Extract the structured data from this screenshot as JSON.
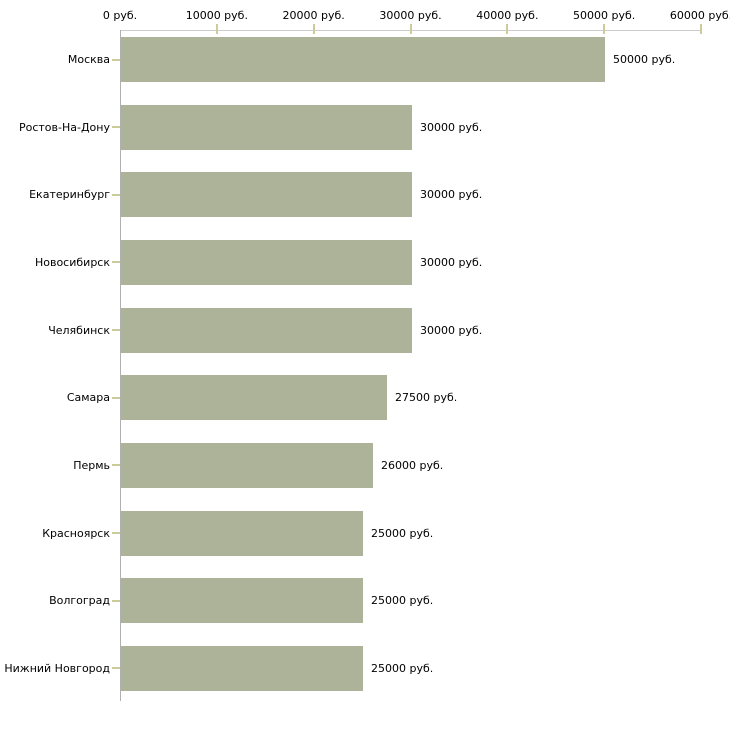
{
  "chart_data": {
    "type": "bar",
    "orientation": "horizontal",
    "title": "",
    "xlabel": "",
    "ylabel": "",
    "unit": "руб.",
    "categories": [
      "Москва",
      "Ростов-На-Дону",
      "Екатеринбург",
      "Новосибирск",
      "Челябинск",
      "Самара",
      "Пермь",
      "Красноярск",
      "Волгоград",
      "Нижний Новгород"
    ],
    "values": [
      50000,
      30000,
      30000,
      30000,
      30000,
      27500,
      26000,
      25000,
      25000,
      25000
    ],
    "value_labels": [
      "50000 руб.",
      "30000 руб.",
      "30000 руб.",
      "30000 руб.",
      "30000 руб.",
      "27500 руб.",
      "26000 руб.",
      "25000 руб.",
      "25000 руб.",
      "25000 руб."
    ],
    "x_ticks": [
      0,
      10000,
      20000,
      30000,
      40000,
      50000,
      60000
    ],
    "x_tick_labels": [
      "0 руб.",
      "10000 руб.",
      "20000 руб.",
      "30000 руб.",
      "40000 руб.",
      "50000 руб.",
      "60000 руб."
    ],
    "xlim": [
      0,
      60000
    ],
    "grid": false,
    "legend": false,
    "axis_position": "top",
    "colors": {
      "bar": "#adb398",
      "tick": "#cccc99",
      "x_axis_line": "#cccccc",
      "y_axis_line": "#b0b0b0",
      "text": "#000000",
      "background": "#ffffff"
    }
  }
}
